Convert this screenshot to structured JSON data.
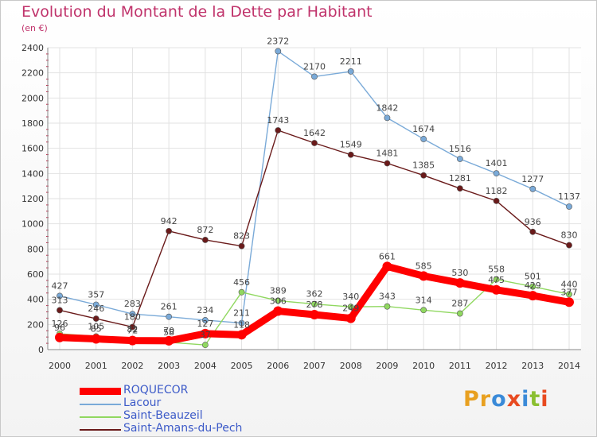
{
  "header": {
    "title": "Evolution du Montant de la Dette par Habitant",
    "subtitle": "(en €)"
  },
  "logo": {
    "text": "Proxiti",
    "letters": [
      {
        "ch": "P",
        "color": "#e8a020"
      },
      {
        "ch": "r",
        "color": "#e8a020"
      },
      {
        "ch": "o",
        "color": "#3a8ad8"
      },
      {
        "ch": "x",
        "color": "#e84a20"
      },
      {
        "ch": "i",
        "color": "#3a8ad8"
      },
      {
        "ch": "t",
        "color": "#8abf30"
      },
      {
        "ch": "i",
        "color": "#e84a20"
      }
    ]
  },
  "chart_data": {
    "type": "line",
    "title": "Evolution du Montant de la Dette par Habitant",
    "subtitle": "(en €)",
    "xlabel": "",
    "ylabel": "",
    "x": [
      "2000",
      "2001",
      "2002",
      "2003",
      "2004",
      "2005",
      "2006",
      "2007",
      "2008",
      "2009",
      "2010",
      "2011",
      "2012",
      "2013",
      "2014"
    ],
    "ylim": [
      0,
      2400
    ],
    "yticks": [
      0,
      200,
      400,
      600,
      800,
      1000,
      1200,
      1400,
      1600,
      1800,
      2000,
      2200,
      2400
    ],
    "grid": true,
    "legend": "bottom-left",
    "series": [
      {
        "name": "ROQUECOR",
        "color": "#ff0000",
        "values": [
          96,
          85,
          72,
          70,
          127,
          118,
          306,
          278,
          249,
          661,
          585,
          530,
          475,
          429,
          377
        ],
        "labels": true
      },
      {
        "name": "Lacour",
        "color": "#7aaad8",
        "values": [
          427,
          357,
          283,
          261,
          234,
          211,
          2372,
          2170,
          2211,
          1842,
          1674,
          1516,
          1401,
          1277,
          1137
        ],
        "labels": true
      },
      {
        "name": "Saint-Beauzeil",
        "color": "#90d860",
        "values": [
          126,
          105,
          82,
          58,
          37,
          456,
          389,
          362,
          340,
          343,
          314,
          287,
          558,
          501,
          440
        ],
        "labels": true
      },
      {
        "name": "Saint-Amans-du-Pech",
        "color": "#6a1a1a",
        "values": [
          313,
          246,
          180,
          942,
          872,
          823,
          1743,
          1642,
          1549,
          1481,
          1385,
          1281,
          1182,
          936,
          830
        ],
        "labels": true
      }
    ]
  }
}
